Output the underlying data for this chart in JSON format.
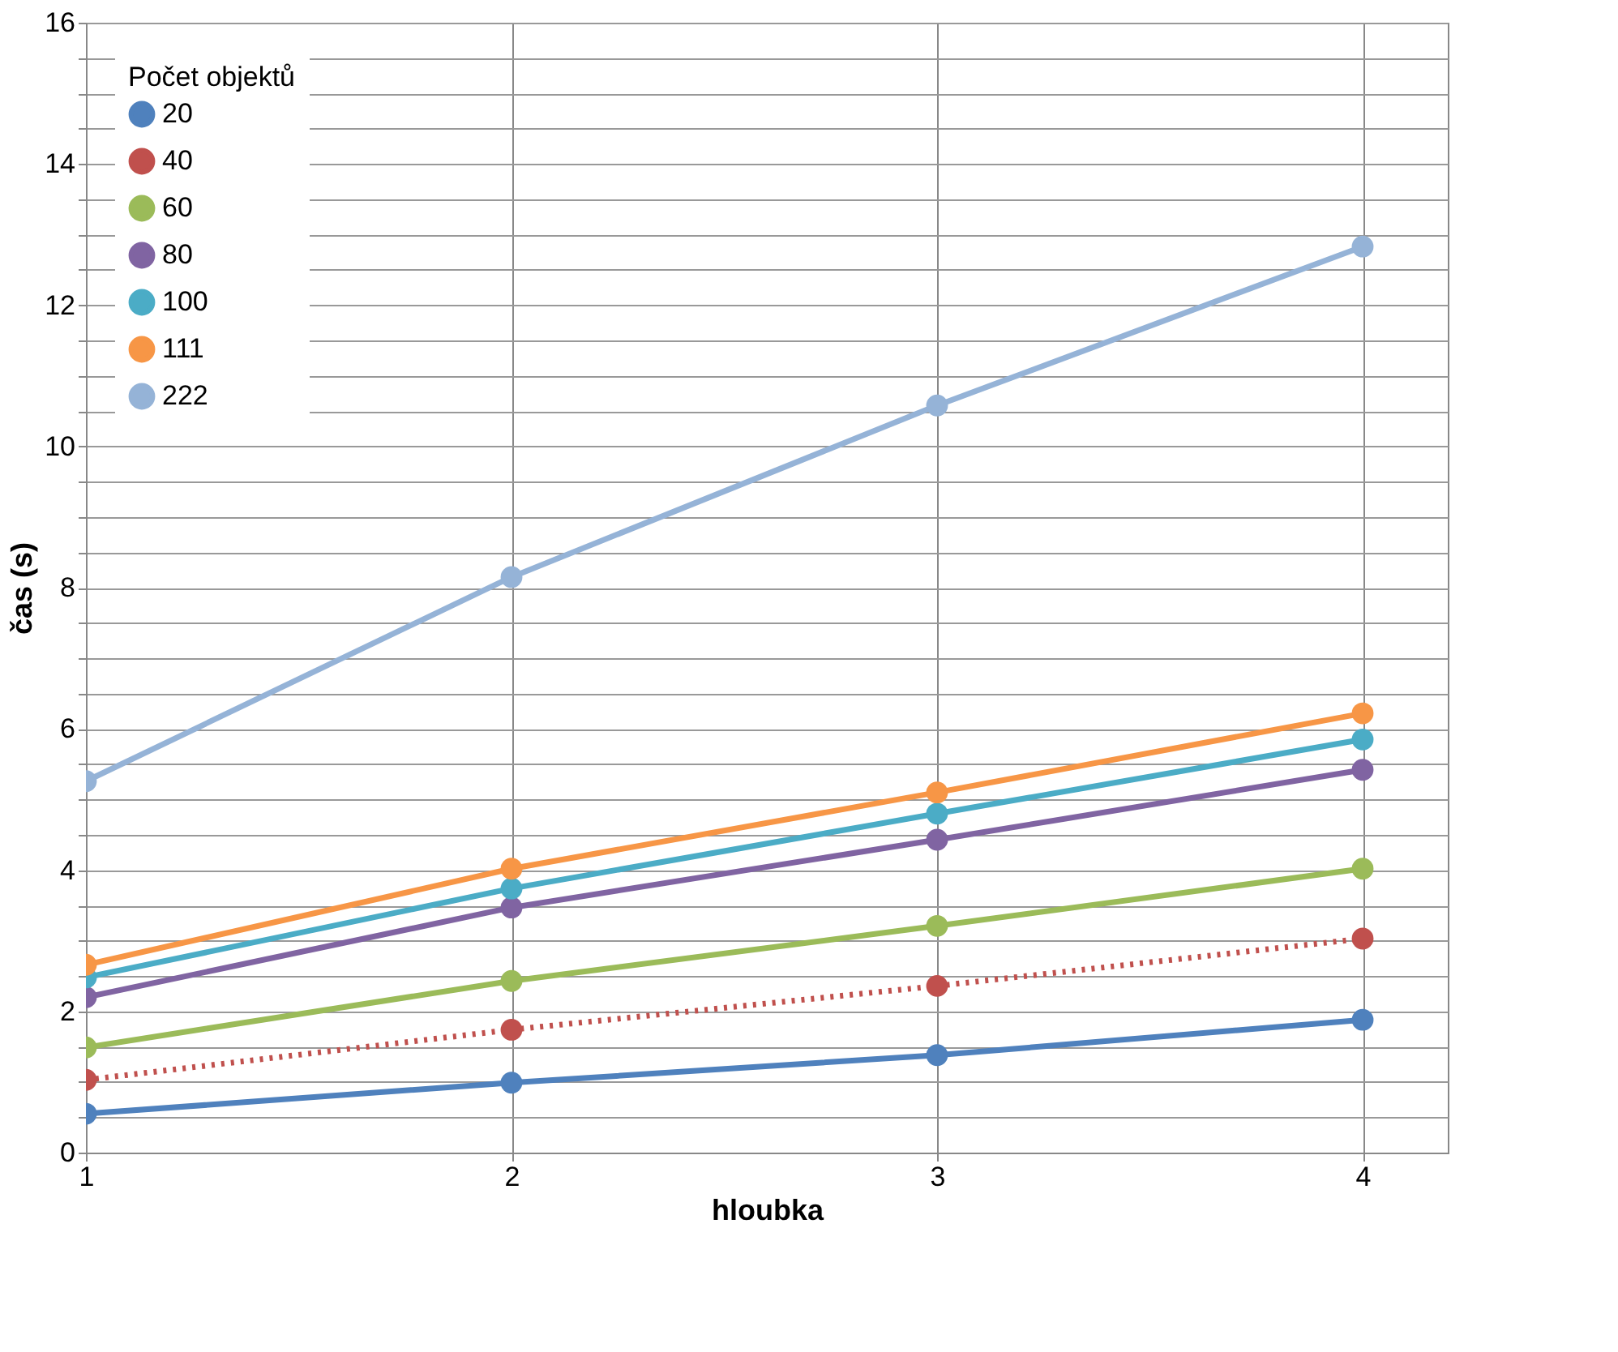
{
  "chart_data": {
    "type": "line",
    "xlabel": "hloubka",
    "ylabel": "čas (s)",
    "legend_title": "Počet objektů",
    "x": [
      1,
      2,
      3,
      4
    ],
    "series": [
      {
        "name": "20",
        "color": "#4f81bd",
        "values": [
          0.55,
          0.99,
          1.38,
          1.88
        ]
      },
      {
        "name": "40",
        "color": "#c0504d",
        "values": [
          1.03,
          1.74,
          2.36,
          3.03
        ],
        "line_style": "dotted"
      },
      {
        "name": "60",
        "color": "#9bbb59",
        "values": [
          1.49,
          2.43,
          3.21,
          4.02
        ]
      },
      {
        "name": "80",
        "color": "#8064a2",
        "values": [
          2.2,
          3.47,
          4.43,
          5.42
        ]
      },
      {
        "name": "100",
        "color": "#4bacc6",
        "values": [
          2.48,
          3.74,
          4.8,
          5.85
        ]
      },
      {
        "name": "111",
        "color": "#f79646",
        "values": [
          2.66,
          4.02,
          5.1,
          6.22
        ]
      },
      {
        "name": "222",
        "color": "#95b3d7",
        "values": [
          5.26,
          8.15,
          10.58,
          12.83
        ]
      }
    ],
    "xlim": [
      1,
      4.2
    ],
    "xticks": [
      1,
      2,
      3,
      4
    ],
    "ylim": [
      0,
      16
    ],
    "yticks": [
      0,
      {
        "value": 0.5,
        "label": null
      },
      {
        "value": 1,
        "label": null
      },
      {
        "value": 1.5,
        "label": null
      },
      2,
      {
        "value": 2.5,
        "label": null
      },
      {
        "value": 3,
        "label": null
      },
      {
        "value": 3.5,
        "label": null
      },
      4,
      {
        "value": 4.5,
        "label": null
      },
      {
        "value": 5,
        "label": null
      },
      {
        "value": 5.5,
        "label": null
      },
      6,
      {
        "value": 6.5,
        "label": null
      },
      {
        "value": 7,
        "label": null
      },
      {
        "value": 7.5,
        "label": null
      },
      8,
      {
        "value": 8.5,
        "label": null
      },
      {
        "value": 9,
        "label": null
      },
      {
        "value": 9.5,
        "label": null
      },
      10,
      {
        "value": 10.5,
        "label": null
      },
      {
        "value": 11,
        "label": null
      },
      {
        "value": 11.5,
        "label": null
      },
      12,
      {
        "value": 12.5,
        "label": null
      },
      {
        "value": 13,
        "label": null
      },
      {
        "value": 13.5,
        "label": null
      },
      14,
      {
        "value": 14.5,
        "label": null
      },
      {
        "value": 15,
        "label": null
      },
      {
        "value": 15.5,
        "label": null
      },
      16
    ],
    "grid": true,
    "legend": "top left",
    "marker": "circle",
    "line_style": "solid"
  }
}
